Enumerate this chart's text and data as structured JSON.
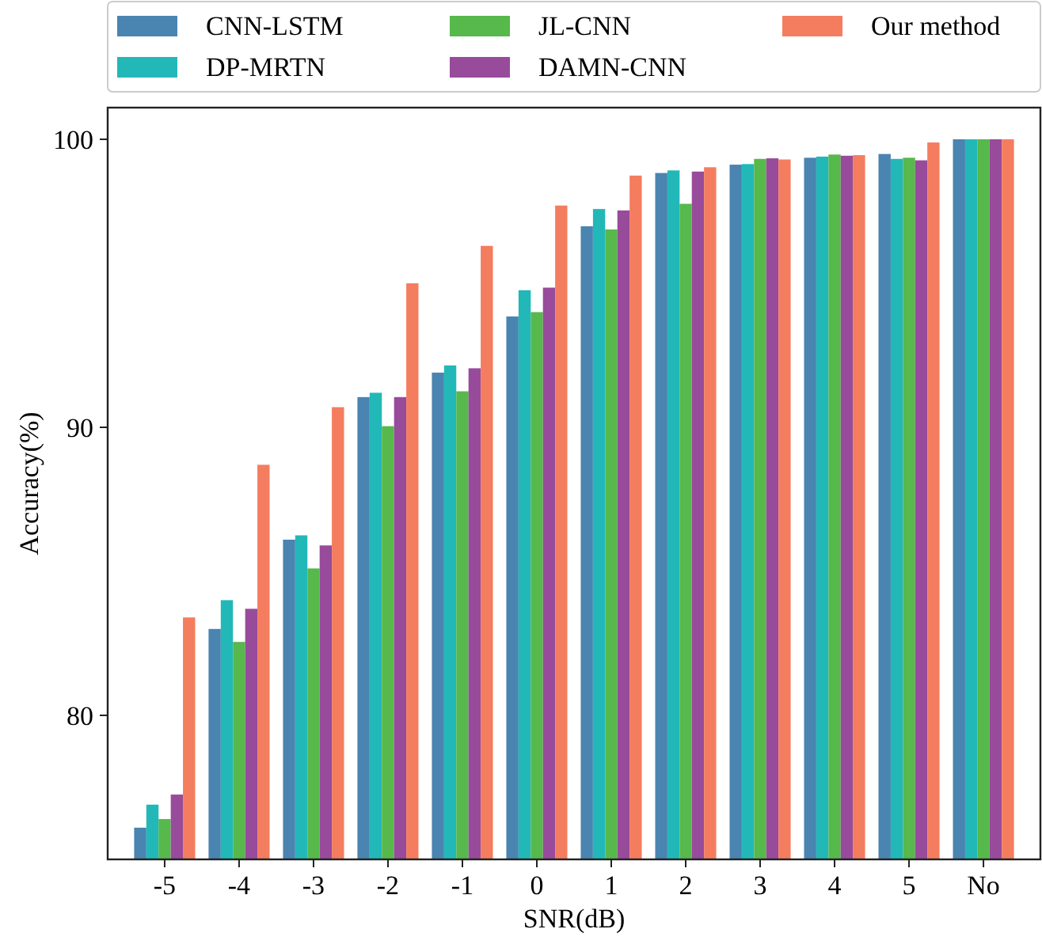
{
  "chart_data": {
    "type": "bar",
    "xlabel": "SNR(dB)",
    "ylabel": "Accuracy(%)",
    "categories": [
      "-5",
      "-4",
      "-3",
      "-2",
      "-1",
      "0",
      "1",
      "2",
      "3",
      "4",
      "5",
      "No"
    ],
    "series": [
      {
        "name": "CNN-LSTM",
        "color": "#4a84b0",
        "values": [
          76.1,
          83.0,
          86.1,
          91.05,
          91.9,
          93.85,
          96.98,
          98.83,
          99.12,
          99.36,
          99.49,
          100
        ]
      },
      {
        "name": "DP-MRTN",
        "color": "#22b8b8",
        "values": [
          76.9,
          84.0,
          86.25,
          91.2,
          92.15,
          94.76,
          97.58,
          98.92,
          99.14,
          99.4,
          99.32,
          100
        ]
      },
      {
        "name": "JL-CNN",
        "color": "#57b84c",
        "values": [
          76.4,
          82.55,
          85.1,
          90.04,
          91.25,
          94.0,
          96.87,
          97.76,
          99.32,
          99.47,
          99.36,
          100
        ]
      },
      {
        "name": "DAMN-CNN",
        "color": "#984b9b",
        "values": [
          77.25,
          83.7,
          85.9,
          91.05,
          92.05,
          94.85,
          97.53,
          98.88,
          99.34,
          99.43,
          99.27,
          100
        ]
      },
      {
        "name": "Our method",
        "color": "#f47d5f",
        "values": [
          83.4,
          88.7,
          90.7,
          95.0,
          96.3,
          97.7,
          98.74,
          99.03,
          99.3,
          99.45,
          99.89,
          100
        ]
      }
    ],
    "ylim": [
      75,
      101.1
    ],
    "yticks": [
      80,
      90,
      100
    ],
    "grid": false,
    "legend": "top"
  }
}
